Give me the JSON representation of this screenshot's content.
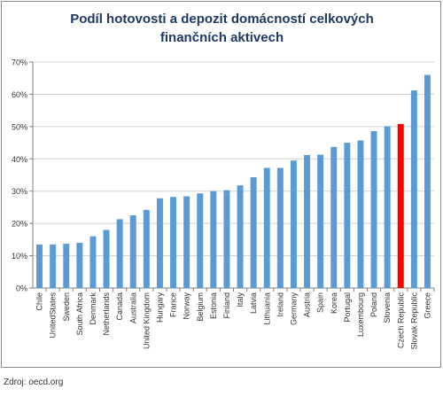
{
  "chart_data": {
    "type": "bar",
    "title_lines": [
      "Podíl hotovosti a depozit domácností celkových",
      "finančních aktivech"
    ],
    "xlabel": "",
    "ylabel": "",
    "ylim": [
      0,
      70
    ],
    "yticks": [
      "0%",
      "10%",
      "20%",
      "30%",
      "40%",
      "50%",
      "60%",
      "70%"
    ],
    "ytick_values": [
      0,
      10,
      20,
      30,
      40,
      50,
      60,
      70
    ],
    "grid": true,
    "legend": "none",
    "categories": [
      "Chile",
      "UnitedStates",
      "Sweden",
      "South Africa",
      "Denmark",
      "Netherlands",
      "Canada",
      "Australia",
      "United Kingdom",
      "Hungary",
      "France",
      "Norway",
      "Belgium",
      "Estonia",
      "Finland",
      "Italy",
      "Latvia",
      "Lithuania",
      "Ireland",
      "Germany",
      "Austria",
      "Spain",
      "Korea",
      "Portugal",
      "Luxembourg",
      "Poland",
      "Slovenia",
      "Czech Republic",
      "Slovak Republic",
      "Greece"
    ],
    "values": [
      13.5,
      13.5,
      13.7,
      14,
      16,
      18,
      21.3,
      22.5,
      24.2,
      27.8,
      28.2,
      28.4,
      29.3,
      30,
      30.3,
      31.8,
      34.3,
      37.2,
      37.2,
      39.5,
      41.2,
      41.3,
      43.7,
      45,
      45.7,
      48.6,
      50.1,
      50.8,
      61.2,
      66
    ],
    "highlight": "Czech Republic",
    "colors": {
      "bar": "#5b9bd5",
      "highlight": "#ff0000",
      "grid": "#d0d0d0",
      "axis": "#808080",
      "title": "#1f3864"
    }
  },
  "footer": {
    "source": "Zdroj: oecd.org"
  }
}
